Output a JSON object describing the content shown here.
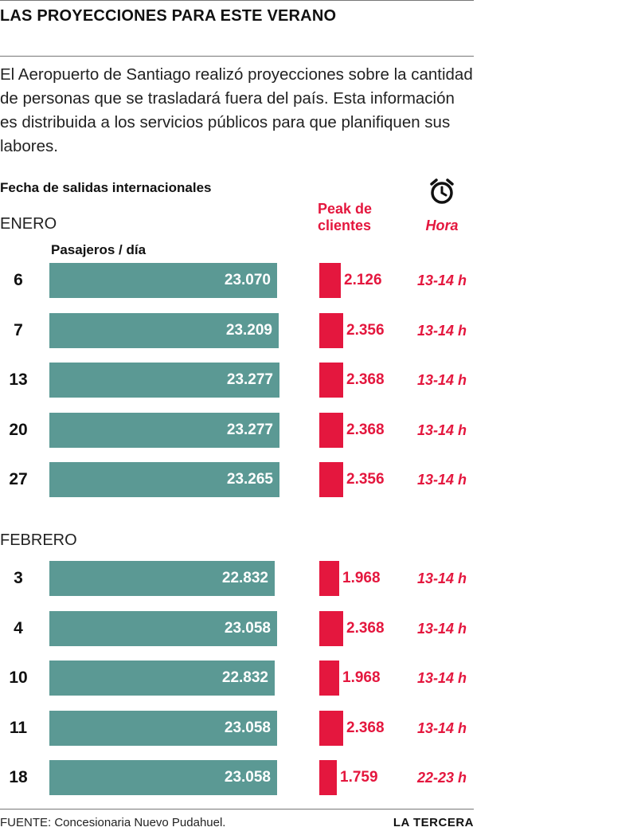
{
  "title": "LAS PROYECCIONES PARA ESTE VERANO",
  "intro": "El Aeropuerto de Santiago realizó proyecciones sobre la cantidad de personas que se trasladará fuera del país. Esta información es distribuida a los servicios públicos para que planifiquen sus labores.",
  "headers": {
    "dates": "Fecha de salidas internacionales",
    "passengers": "Pasajeros / día",
    "peak_line1": "Peak de",
    "peak_line2": "clientes",
    "hour": "Hora",
    "hour_icon": "alarm-clock-icon"
  },
  "months": [
    "ENERO",
    "FEBRERO"
  ],
  "footer": {
    "source": "FUENTE: Concesionaria Nuevo Pudahuel.",
    "brand": "LA TERCERA"
  },
  "colors": {
    "bar": "#5b9994",
    "accent": "#e4173e"
  },
  "chart_data": {
    "type": "bar",
    "orientation": "horizontal",
    "title": "LAS PROYECCIONES PARA ESTE VERANO",
    "xlabel": "Pasajeros / día",
    "ylabel": "Fecha de salidas internacionales",
    "groups": [
      {
        "month": "ENERO",
        "rows": [
          {
            "day": "6",
            "passengers": 23070,
            "passengers_label": "23.070",
            "peak": 2126,
            "peak_label": "2.126",
            "hour": "13-14 h"
          },
          {
            "day": "7",
            "passengers": 23209,
            "passengers_label": "23.209",
            "peak": 2356,
            "peak_label": "2.356",
            "hour": "13-14 h"
          },
          {
            "day": "13",
            "passengers": 23277,
            "passengers_label": "23.277",
            "peak": 2368,
            "peak_label": "2.368",
            "hour": "13-14 h"
          },
          {
            "day": "20",
            "passengers": 23277,
            "passengers_label": "23.277",
            "peak": 2368,
            "peak_label": "2.368",
            "hour": "13-14 h"
          },
          {
            "day": "27",
            "passengers": 23265,
            "passengers_label": "23.265",
            "peak": 2356,
            "peak_label": "2.356",
            "hour": "13-14 h"
          }
        ]
      },
      {
        "month": "FEBRERO",
        "rows": [
          {
            "day": "3",
            "passengers": 22832,
            "passengers_label": "22.832",
            "peak": 1968,
            "peak_label": "1.968",
            "hour": "13-14 h"
          },
          {
            "day": "4",
            "passengers": 23058,
            "passengers_label": "23.058",
            "peak": 2368,
            "peak_label": "2.368",
            "hour": "13-14 h"
          },
          {
            "day": "10",
            "passengers": 22832,
            "passengers_label": "22.832",
            "peak": 1968,
            "peak_label": "1.968",
            "hour": "13-14 h"
          },
          {
            "day": "11",
            "passengers": 23058,
            "passengers_label": "23.058",
            "peak": 2368,
            "peak_label": "2.368",
            "hour": "13-14 h"
          },
          {
            "day": "18",
            "passengers": 23058,
            "passengers_label": "23.058",
            "peak": 1759,
            "peak_label": "1.759",
            "hour": "22-23 h"
          }
        ]
      }
    ]
  }
}
